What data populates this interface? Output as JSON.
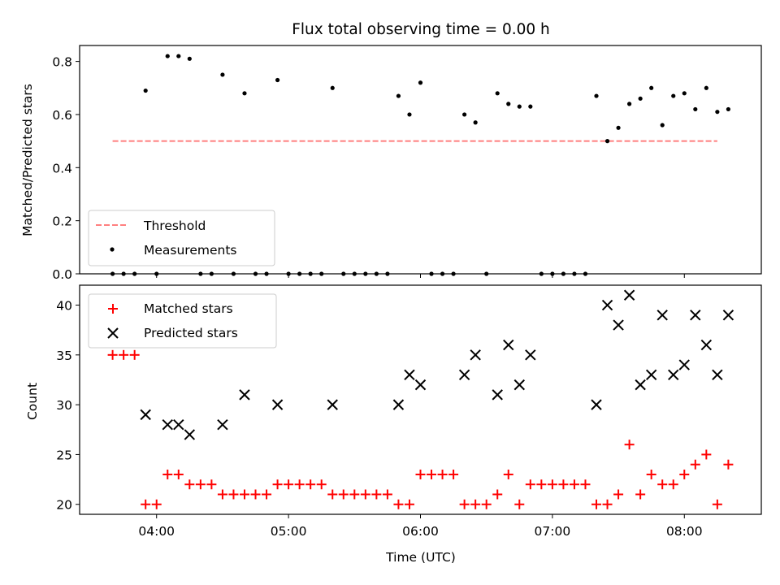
{
  "chart_data": [
    {
      "type": "scatter",
      "title": "Flux total observing time = 0.00 h",
      "ylabel": "Matched/Predicted stars",
      "xlim": [
        "03:25",
        "08:35"
      ],
      "ylim": [
        0,
        0.86
      ],
      "yticks": [
        0.0,
        0.2,
        0.4,
        0.6,
        0.8
      ],
      "ytick_labels": [
        "0.0",
        "0.2",
        "0.4",
        "0.6",
        "0.8"
      ],
      "legend_position": "lower-left",
      "threshold": {
        "name": "Threshold",
        "color": "#ff7f7f",
        "style": "dashed",
        "x_range": [
          "03:40",
          "08:15"
        ],
        "y": 0.5
      },
      "series": [
        {
          "name": "Measurements",
          "marker": "dot",
          "color": "#000000",
          "points": [
            [
              "03:40",
              0.0
            ],
            [
              "03:45",
              0.0
            ],
            [
              "03:50",
              0.0
            ],
            [
              "03:55",
              0.69
            ],
            [
              "04:00",
              0.0
            ],
            [
              "04:05",
              0.82
            ],
            [
              "04:10",
              0.82
            ],
            [
              "04:15",
              0.81
            ],
            [
              "04:20",
              0.0
            ],
            [
              "04:25",
              0.0
            ],
            [
              "04:30",
              0.75
            ],
            [
              "04:35",
              0.0
            ],
            [
              "04:40",
              0.68
            ],
            [
              "04:45",
              0.0
            ],
            [
              "04:50",
              0.0
            ],
            [
              "04:55",
              0.73
            ],
            [
              "05:00",
              0.0
            ],
            [
              "05:05",
              0.0
            ],
            [
              "05:10",
              0.0
            ],
            [
              "05:15",
              0.0
            ],
            [
              "05:20",
              0.7
            ],
            [
              "05:25",
              0.0
            ],
            [
              "05:30",
              0.0
            ],
            [
              "05:35",
              0.0
            ],
            [
              "05:40",
              0.0
            ],
            [
              "05:45",
              0.0
            ],
            [
              "05:50",
              0.67
            ],
            [
              "05:55",
              0.6
            ],
            [
              "06:00",
              0.72
            ],
            [
              "06:05",
              0.0
            ],
            [
              "06:10",
              0.0
            ],
            [
              "06:15",
              0.0
            ],
            [
              "06:20",
              0.6
            ],
            [
              "06:25",
              0.57
            ],
            [
              "06:30",
              0.0
            ],
            [
              "06:35",
              0.68
            ],
            [
              "06:40",
              0.64
            ],
            [
              "06:45",
              0.63
            ],
            [
              "06:50",
              0.63
            ],
            [
              "06:55",
              0.0
            ],
            [
              "07:00",
              0.0
            ],
            [
              "07:05",
              0.0
            ],
            [
              "07:10",
              0.0
            ],
            [
              "07:15",
              0.0
            ],
            [
              "07:20",
              0.67
            ],
            [
              "07:25",
              0.5
            ],
            [
              "07:30",
              0.55
            ],
            [
              "07:35",
              0.64
            ],
            [
              "07:40",
              0.66
            ],
            [
              "07:45",
              0.7
            ],
            [
              "07:50",
              0.56
            ],
            [
              "07:55",
              0.67
            ],
            [
              "08:00",
              0.68
            ],
            [
              "08:05",
              0.62
            ],
            [
              "08:10",
              0.7
            ],
            [
              "08:15",
              0.61
            ],
            [
              "08:20",
              0.62
            ]
          ]
        }
      ]
    },
    {
      "type": "scatter",
      "xlabel": "Time (UTC)",
      "ylabel": "Count",
      "xlim": [
        "03:25",
        "08:35"
      ],
      "xticks": [
        "04:00",
        "05:00",
        "06:00",
        "07:00",
        "08:00"
      ],
      "ylim": [
        19,
        42
      ],
      "yticks": [
        20,
        25,
        30,
        35,
        40
      ],
      "legend_position": "upper-left",
      "series": [
        {
          "name": "Matched stars",
          "marker": "plus",
          "color": "#ff0000",
          "points": [
            [
              "03:40",
              35
            ],
            [
              "03:45",
              35
            ],
            [
              "03:50",
              35
            ],
            [
              "03:55",
              20
            ],
            [
              "04:00",
              20
            ],
            [
              "04:05",
              23
            ],
            [
              "04:10",
              23
            ],
            [
              "04:15",
              22
            ],
            [
              "04:20",
              22
            ],
            [
              "04:25",
              22
            ],
            [
              "04:30",
              21
            ],
            [
              "04:35",
              21
            ],
            [
              "04:40",
              21
            ],
            [
              "04:45",
              21
            ],
            [
              "04:50",
              21
            ],
            [
              "04:55",
              22
            ],
            [
              "05:00",
              22
            ],
            [
              "05:05",
              22
            ],
            [
              "05:10",
              22
            ],
            [
              "05:15",
              22
            ],
            [
              "05:20",
              21
            ],
            [
              "05:25",
              21
            ],
            [
              "05:30",
              21
            ],
            [
              "05:35",
              21
            ],
            [
              "05:40",
              21
            ],
            [
              "05:45",
              21
            ],
            [
              "05:50",
              20
            ],
            [
              "05:55",
              20
            ],
            [
              "06:00",
              23
            ],
            [
              "06:05",
              23
            ],
            [
              "06:10",
              23
            ],
            [
              "06:15",
              23
            ],
            [
              "06:20",
              20
            ],
            [
              "06:25",
              20
            ],
            [
              "06:30",
              20
            ],
            [
              "06:35",
              21
            ],
            [
              "06:40",
              23
            ],
            [
              "06:45",
              20
            ],
            [
              "06:50",
              22
            ],
            [
              "06:55",
              22
            ],
            [
              "07:00",
              22
            ],
            [
              "07:05",
              22
            ],
            [
              "07:10",
              22
            ],
            [
              "07:15",
              22
            ],
            [
              "07:20",
              20
            ],
            [
              "07:25",
              20
            ],
            [
              "07:30",
              21
            ],
            [
              "07:35",
              26
            ],
            [
              "07:40",
              21
            ],
            [
              "07:45",
              23
            ],
            [
              "07:50",
              22
            ],
            [
              "07:55",
              22
            ],
            [
              "08:00",
              23
            ],
            [
              "08:05",
              24
            ],
            [
              "08:10",
              25
            ],
            [
              "08:15",
              20
            ],
            [
              "08:20",
              24
            ]
          ]
        },
        {
          "name": "Predicted stars",
          "marker": "x",
          "color": "#000000",
          "points": [
            [
              "03:55",
              29
            ],
            [
              "04:05",
              28
            ],
            [
              "04:10",
              28
            ],
            [
              "04:15",
              27
            ],
            [
              "04:30",
              28
            ],
            [
              "04:40",
              31
            ],
            [
              "04:55",
              30
            ],
            [
              "05:20",
              30
            ],
            [
              "05:50",
              30
            ],
            [
              "05:55",
              33
            ],
            [
              "06:00",
              32
            ],
            [
              "06:20",
              33
            ],
            [
              "06:25",
              35
            ],
            [
              "06:35",
              31
            ],
            [
              "06:40",
              36
            ],
            [
              "06:45",
              32
            ],
            [
              "06:50",
              35
            ],
            [
              "07:20",
              30
            ],
            [
              "07:25",
              40
            ],
            [
              "07:30",
              38
            ],
            [
              "07:35",
              41
            ],
            [
              "07:40",
              32
            ],
            [
              "07:45",
              33
            ],
            [
              "07:50",
              39
            ],
            [
              "07:55",
              33
            ],
            [
              "08:00",
              34
            ],
            [
              "08:05",
              39
            ],
            [
              "08:10",
              36
            ],
            [
              "08:15",
              33
            ],
            [
              "08:20",
              39
            ]
          ]
        }
      ]
    }
  ]
}
